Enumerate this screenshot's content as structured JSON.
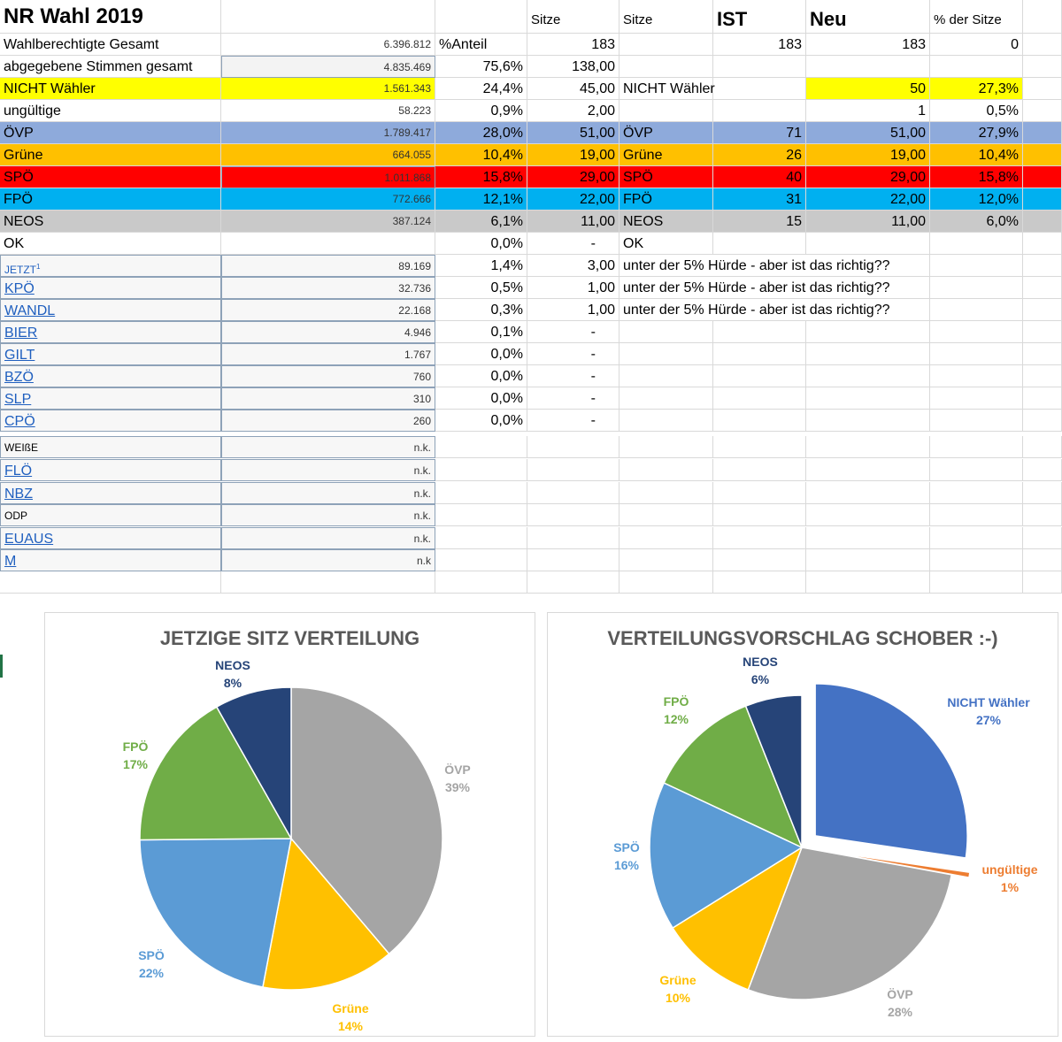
{
  "sheet": {
    "title": "NR Wahl 2019",
    "header": {
      "sitze": "Sitze",
      "sitze2": "Sitze",
      "ist": "IST",
      "neu": "Neu",
      "pct_sitze": "% der Sitze"
    },
    "wahlberechtigte": {
      "label": "Wahlberechtigte Gesamt",
      "votes": "6.396.812",
      "anteil_label": "%Anteil",
      "sitze": "183",
      "ist": "183",
      "neu": "183",
      "pct": "0"
    },
    "abgegeben": {
      "label": "abgegebene Stimmen gesamt",
      "votes": "4.835.469",
      "pct": "75,6%",
      "sitze": "138,00"
    },
    "nicht_waehler": {
      "label": "NICHT Wähler",
      "votes": "1.561.343",
      "pct": "24,4%",
      "sitze": "45,00",
      "name": "NICHT Wähler",
      "neu": "50",
      "pct_sitze": "27,3%"
    },
    "ungueltige": {
      "label": "ungültige",
      "votes": "58.223",
      "pct": "0,9%",
      "sitze": "2,00",
      "neu": "1",
      "pct_sitze": "0,5%"
    },
    "parties": [
      {
        "label": "ÖVP",
        "votes": "1.789.417",
        "pct": "28,0%",
        "sitze": "51,00",
        "name": "ÖVP",
        "ist": "71",
        "neu": "51,00",
        "pct_sitze": "27,9%"
      },
      {
        "label": "Grüne",
        "votes": "664.055",
        "pct": "10,4%",
        "sitze": "19,00",
        "name": "Grüne",
        "ist": "26",
        "neu": "19,00",
        "pct_sitze": "10,4%"
      },
      {
        "label": "SPÖ",
        "votes": "1.011.868",
        "pct": "15,8%",
        "sitze": "29,00",
        "name": "SPÖ",
        "ist": "40",
        "neu": "29,00",
        "pct_sitze": "15,8%"
      },
      {
        "label": "FPÖ",
        "votes": "772.666",
        "pct": "12,1%",
        "sitze": "22,00",
        "name": "FPÖ",
        "ist": "31",
        "neu": "22,00",
        "pct_sitze": "12,0%"
      },
      {
        "label": "NEOS",
        "votes": "387.124",
        "pct": "6,1%",
        "sitze": "11,00",
        "name": "NEOS",
        "ist": "15",
        "neu": "11,00",
        "pct_sitze": "6,0%"
      }
    ],
    "ok": {
      "label": "OK",
      "pct": "0,0%",
      "sitze": "-",
      "name": "OK"
    },
    "jetzt": {
      "label": "JETZT",
      "sup": "1",
      "votes": "89.169",
      "pct": "1,4%",
      "sitze": "3,00",
      "note": "unter der 5% Hürde - aber ist das richtig??"
    },
    "small_parties": [
      {
        "label": "KPÖ",
        "votes": "32.736",
        "pct": "0,5%",
        "sitze": "1,00",
        "note": "unter der 5% Hürde - aber ist das richtig??"
      },
      {
        "label": "WANDL",
        "votes": "22.168",
        "pct": "0,3%",
        "sitze": "1,00",
        "note": "unter der 5% Hürde - aber ist das richtig??"
      },
      {
        "label": "BIER",
        "votes": "4.946",
        "pct": "0,1%",
        "sitze": "-"
      },
      {
        "label": "GILT",
        "votes": "1.767",
        "pct": "0,0%",
        "sitze": "-"
      },
      {
        "label": "BZÖ",
        "votes": "760",
        "pct": "0,0%",
        "sitze": "-"
      },
      {
        "label": "SLP",
        "votes": "310",
        "pct": "0,0%",
        "sitze": "-"
      },
      {
        "label": "CPÖ",
        "votes": "260",
        "pct": "0,0%",
        "sitze": "-"
      }
    ],
    "nk_parties": [
      {
        "label": "WEIßE",
        "votes": "n.k.",
        "link": false
      },
      {
        "label": "FLÖ",
        "votes": "n.k.",
        "link": true
      },
      {
        "label": "NBZ",
        "votes": "n.k.",
        "link": true
      },
      {
        "label": "ODP",
        "votes": "n.k.",
        "link": false
      },
      {
        "label": "EUAUS",
        "votes": "n.k.",
        "link": true
      },
      {
        "label": "M",
        "votes": "n.k",
        "link": true
      }
    ]
  },
  "colors": {
    "oevp": "#a5a5a5",
    "gruene": "#ffc000",
    "spoe": "#5b9bd5",
    "fpoe": "#70ad47",
    "neos": "#264478",
    "nicht": "#4472c4",
    "ungueltige": "#ed7d31"
  },
  "chart_data": [
    {
      "type": "pie",
      "title": "JETZIGE SITZ VERTEILUNG",
      "categories": [
        "ÖVP",
        "Grüne",
        "SPÖ",
        "FPÖ",
        "NEOS"
      ],
      "values": [
        71,
        26,
        40,
        31,
        15
      ],
      "labels": [
        "39%",
        "14%",
        "22%",
        "17%",
        "8%"
      ],
      "colors": [
        "#a5a5a5",
        "#ffc000",
        "#5b9bd5",
        "#70ad47",
        "#264478"
      ]
    },
    {
      "type": "pie",
      "title": "VERTEILUNGSVORSCHLAG SCHOBER :-)",
      "categories": [
        "NICHT Wähler",
        "ungültige",
        "ÖVP",
        "Grüne",
        "SPÖ",
        "FPÖ",
        "NEOS"
      ],
      "values": [
        50,
        1,
        51,
        19,
        29,
        22,
        11
      ],
      "labels": [
        "27%",
        "1%",
        "28%",
        "10%",
        "16%",
        "12%",
        "6%"
      ],
      "colors": [
        "#4472c4",
        "#ed7d31",
        "#a5a5a5",
        "#ffc000",
        "#5b9bd5",
        "#70ad47",
        "#264478"
      ],
      "exploded": [
        "NICHT Wähler",
        "ungültige"
      ]
    }
  ]
}
